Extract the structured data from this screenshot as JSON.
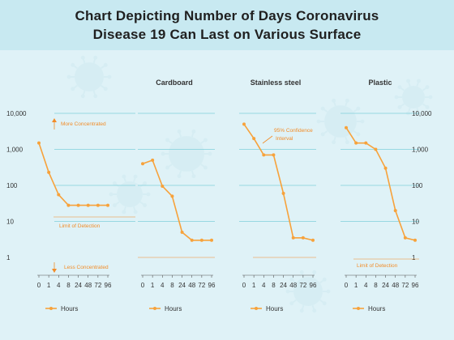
{
  "title_line1": "Chart Depicting Number of Days Coronavirus",
  "title_line2": "Disease 19 Can Last on Various Surface",
  "colors": {
    "series": "#f7a23b",
    "grid": "#7fcfdb",
    "header_bg": "#c8e9f1",
    "page_bg": "#dff2f7",
    "annotation": "#f28c28"
  },
  "chart_data": [
    {
      "type": "line",
      "title": "",
      "x": [
        "0",
        "1",
        "4",
        "8",
        "24",
        "48",
        "72",
        "96"
      ],
      "yscale": "log",
      "ylim": [
        1,
        10000
      ],
      "yticks": [
        "1",
        "10",
        "100",
        "1,000",
        "10,000"
      ],
      "series": [
        {
          "name": "Hours",
          "values": [
            1500,
            230,
            55,
            28,
            28,
            28,
            28,
            28
          ]
        }
      ],
      "annotations": [
        "More Concentrated",
        "Limit of Detection",
        "Less Concentrated"
      ],
      "legend": "Hours"
    },
    {
      "type": "line",
      "title": "Cardboard",
      "x": [
        "0",
        "1",
        "4",
        "8",
        "24",
        "48",
        "72",
        "96"
      ],
      "yscale": "log",
      "ylim": [
        1,
        10000
      ],
      "series": [
        {
          "name": "Hours",
          "values": [
            400,
            500,
            95,
            50,
            5,
            3,
            3,
            3
          ]
        }
      ],
      "annotations": [],
      "legend": "Hours"
    },
    {
      "type": "line",
      "title": "Stainless steel",
      "x": [
        "0",
        "1",
        "4",
        "8",
        "24",
        "48",
        "72",
        "96"
      ],
      "yscale": "log",
      "ylim": [
        1,
        10000
      ],
      "series": [
        {
          "name": "Hours",
          "values": [
            5000,
            2000,
            700,
            700,
            60,
            3.5,
            3.5,
            3
          ]
        }
      ],
      "annotations": [
        "95% Confidence",
        "Interval"
      ],
      "legend": "Hours"
    },
    {
      "type": "line",
      "title": "Plastic",
      "x": [
        "0",
        "1",
        "4",
        "8",
        "24",
        "48",
        "72",
        "96"
      ],
      "yscale": "log",
      "ylim": [
        1,
        10000
      ],
      "yticks": [
        "1",
        "10",
        "100",
        "1,000",
        "10,000"
      ],
      "series": [
        {
          "name": "Hours",
          "values": [
            4000,
            1500,
            1500,
            1000,
            300,
            20,
            3.5,
            3
          ]
        }
      ],
      "annotations": [
        "Limit of Detection"
      ],
      "legend": "Hours"
    }
  ]
}
